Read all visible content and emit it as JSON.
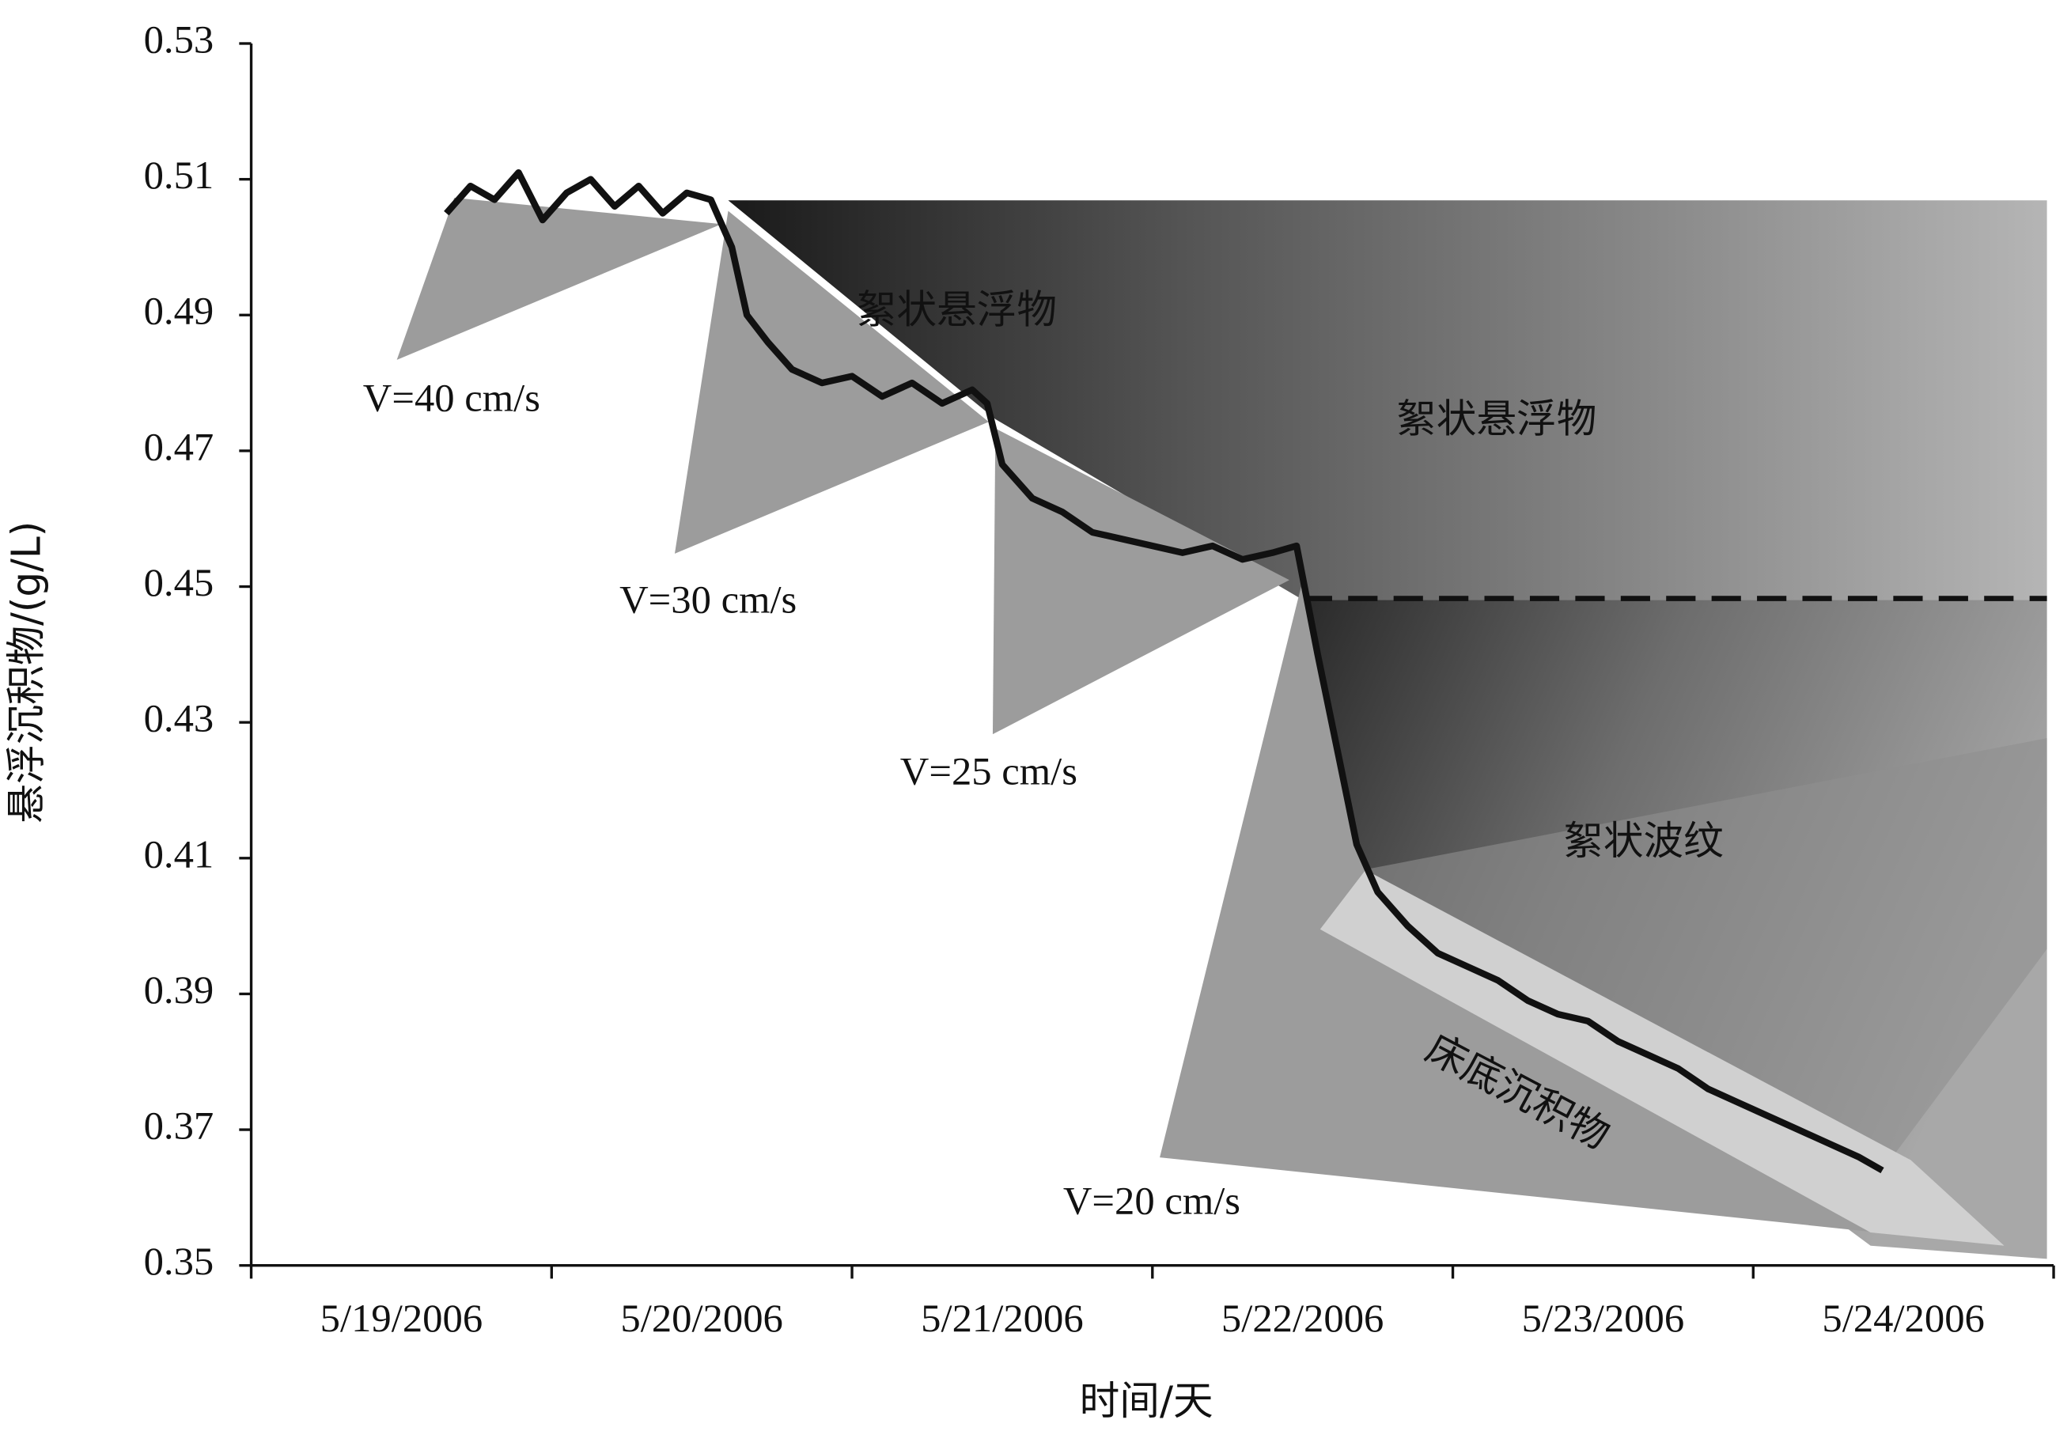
{
  "chart_data": {
    "type": "line",
    "y_label": "悬浮沉积物/(g/L)",
    "x_label": "时间/天",
    "categories": [
      "5/19/2006",
      "5/20/2006",
      "5/21/2006",
      "5/22/2006",
      "5/23/2006",
      "5/24/2006"
    ],
    "xlim": [
      0,
      6
    ],
    "ylim": [
      0.35,
      0.53
    ],
    "yticks": [
      0.35,
      0.37,
      0.39,
      0.41,
      0.43,
      0.45,
      0.47,
      0.49,
      0.51,
      0.53
    ],
    "annotations": [
      "V=40 cm/s",
      "V=30 cm/s",
      "V=25 cm/s",
      "V=20 cm/s",
      "絮状悬浮物",
      "絮状悬浮物",
      "絮状波纹",
      "床底沉积物"
    ],
    "series": [
      {
        "color": "#111111",
        "x": [
          0.65,
          0.73,
          0.81,
          0.89,
          0.97,
          1.05,
          1.13,
          1.21,
          1.29,
          1.37,
          1.45,
          1.53,
          1.6,
          1.65,
          1.72,
          1.8,
          1.9,
          2.0,
          2.1,
          2.2,
          2.3,
          2.4,
          2.45,
          2.5,
          2.6,
          2.7,
          2.8,
          2.9,
          3.0,
          3.1,
          3.2,
          3.3,
          3.4,
          3.48,
          3.55,
          3.62,
          3.68,
          3.75,
          3.85,
          3.95,
          4.05,
          4.15,
          4.25,
          4.35,
          4.45,
          4.55,
          4.65,
          4.75,
          4.85,
          4.95,
          5.05,
          5.15,
          5.25,
          5.35,
          5.43
        ],
        "values": [
          0.505,
          0.509,
          0.507,
          0.511,
          0.504,
          0.508,
          0.51,
          0.506,
          0.509,
          0.505,
          0.508,
          0.507,
          0.5,
          0.49,
          0.486,
          0.482,
          0.48,
          0.481,
          0.478,
          0.48,
          0.477,
          0.479,
          0.477,
          0.468,
          0.463,
          0.461,
          0.458,
          0.457,
          0.456,
          0.455,
          0.456,
          0.454,
          0.455,
          0.456,
          0.44,
          0.425,
          0.412,
          0.405,
          0.4,
          0.396,
          0.394,
          0.392,
          0.389,
          0.387,
          0.386,
          0.383,
          0.381,
          0.379,
          0.376,
          0.374,
          0.372,
          0.37,
          0.368,
          0.366,
          0.364
        ]
      }
    ]
  }
}
